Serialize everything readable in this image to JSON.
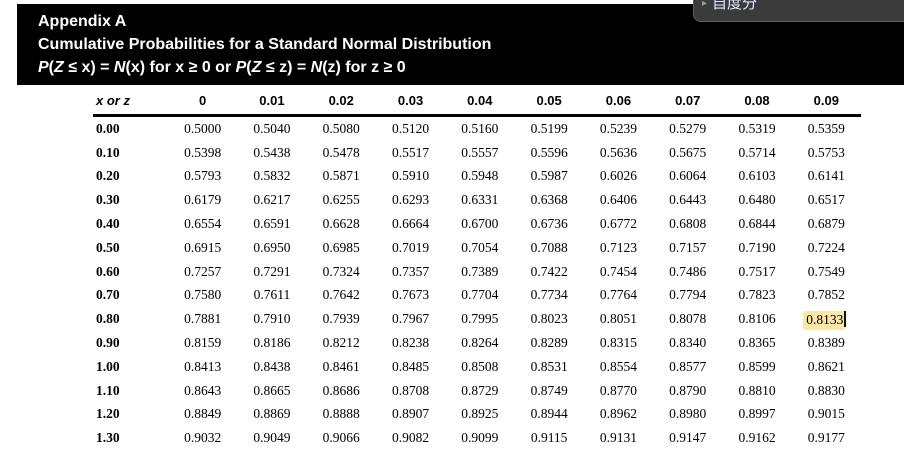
{
  "popup": {
    "arrow_icon": "▸",
    "label": "自度分",
    "background": "#3b3b3b",
    "border_color": "#5f5f5f"
  },
  "header": {
    "line1": "Appendix A",
    "line2": "Cumulative Probabilities for a Standard Normal Distribution",
    "formula_segments": [
      {
        "t": "P",
        "i": true
      },
      {
        "t": "(",
        "i": false
      },
      {
        "t": "Z",
        "i": true
      },
      {
        "t": " ≤ x) = ",
        "i": false
      },
      {
        "t": "N",
        "i": true
      },
      {
        "t": "(x) for x ≥ 0 or ",
        "i": false
      },
      {
        "t": "P",
        "i": true
      },
      {
        "t": "(",
        "i": false
      },
      {
        "t": "Z",
        "i": true
      },
      {
        "t": " ≤ z) = ",
        "i": false
      },
      {
        "t": "N",
        "i": true
      },
      {
        "t": "(z) for z ≥ 0",
        "i": false
      }
    ],
    "band_color": "#000000",
    "text_color": "#ffffff"
  },
  "table": {
    "corner_label": "x or z",
    "col_headers": [
      "0",
      "0.01",
      "0.02",
      "0.03",
      "0.04",
      "0.05",
      "0.06",
      "0.07",
      "0.08",
      "0.09"
    ],
    "rows": [
      {
        "label": "0.00",
        "values": [
          "0.5000",
          "0.5040",
          "0.5080",
          "0.5120",
          "0.5160",
          "0.5199",
          "0.5239",
          "0.5279",
          "0.5319",
          "0.5359"
        ]
      },
      {
        "label": "0.10",
        "values": [
          "0.5398",
          "0.5438",
          "0.5478",
          "0.5517",
          "0.5557",
          "0.5596",
          "0.5636",
          "0.5675",
          "0.5714",
          "0.5753"
        ]
      },
      {
        "label": "0.20",
        "values": [
          "0.5793",
          "0.5832",
          "0.5871",
          "0.5910",
          "0.5948",
          "0.5987",
          "0.6026",
          "0.6064",
          "0.6103",
          "0.6141"
        ]
      },
      {
        "label": "0.30",
        "values": [
          "0.6179",
          "0.6217",
          "0.6255",
          "0.6293",
          "0.6331",
          "0.6368",
          "0.6406",
          "0.6443",
          "0.6480",
          "0.6517"
        ]
      },
      {
        "label": "0.40",
        "values": [
          "0.6554",
          "0.6591",
          "0.6628",
          "0.6664",
          "0.6700",
          "0.6736",
          "0.6772",
          "0.6808",
          "0.6844",
          "0.6879"
        ]
      },
      {
        "label": "0.50",
        "values": [
          "0.6915",
          "0.6950",
          "0.6985",
          "0.7019",
          "0.7054",
          "0.7088",
          "0.7123",
          "0.7157",
          "0.7190",
          "0.7224"
        ]
      },
      {
        "label": "0.60",
        "values": [
          "0.7257",
          "0.7291",
          "0.7324",
          "0.7357",
          "0.7389",
          "0.7422",
          "0.7454",
          "0.7486",
          "0.7517",
          "0.7549"
        ]
      },
      {
        "label": "0.70",
        "values": [
          "0.7580",
          "0.7611",
          "0.7642",
          "0.7673",
          "0.7704",
          "0.7734",
          "0.7764",
          "0.7794",
          "0.7823",
          "0.7852"
        ]
      },
      {
        "label": "0.80",
        "values": [
          "0.7881",
          "0.7910",
          "0.7939",
          "0.7967",
          "0.7995",
          "0.8023",
          "0.8051",
          "0.8078",
          "0.8106",
          "0.8133"
        ]
      },
      {
        "label": "0.90",
        "values": [
          "0.8159",
          "0.8186",
          "0.8212",
          "0.8238",
          "0.8264",
          "0.8289",
          "0.8315",
          "0.8340",
          "0.8365",
          "0.8389"
        ]
      },
      {
        "label": "1.00",
        "values": [
          "0.8413",
          "0.8438",
          "0.8461",
          "0.8485",
          "0.8508",
          "0.8531",
          "0.8554",
          "0.8577",
          "0.8599",
          "0.8621"
        ]
      },
      {
        "label": "1.10",
        "values": [
          "0.8643",
          "0.8665",
          "0.8686",
          "0.8708",
          "0.8729",
          "0.8749",
          "0.8770",
          "0.8790",
          "0.8810",
          "0.8830"
        ]
      },
      {
        "label": "1.20",
        "values": [
          "0.8849",
          "0.8869",
          "0.8888",
          "0.8907",
          "0.8925",
          "0.8944",
          "0.8962",
          "0.8980",
          "0.8997",
          "0.9015"
        ]
      },
      {
        "label": "1.30",
        "values": [
          "0.9032",
          "0.9049",
          "0.9066",
          "0.9082",
          "0.9099",
          "0.9115",
          "0.9131",
          "0.9147",
          "0.9162",
          "0.9177"
        ]
      }
    ],
    "highlight": {
      "row_index": 8,
      "col_index": 9,
      "value": "0.8133",
      "color": "#fbe7a6"
    }
  }
}
